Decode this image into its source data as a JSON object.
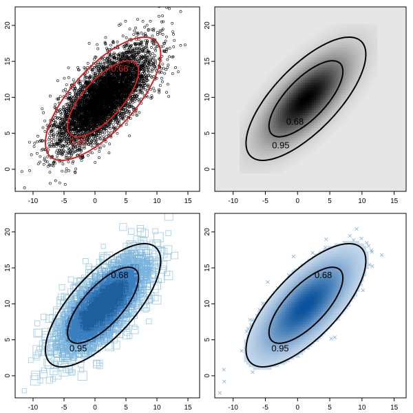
{
  "chart_data": [
    {
      "type": "scatter",
      "style": "points",
      "title": "",
      "xlim": [
        -12,
        16
      ],
      "ylim": [
        -2.5,
        22
      ],
      "x_ticks": [
        -10,
        -5,
        0,
        5,
        10,
        15
      ],
      "y_ticks": [
        0,
        5,
        10,
        15,
        20
      ],
      "x_tick_labels": [
        "-10",
        "-5",
        "0",
        "5",
        "10",
        "15"
      ],
      "y_tick_labels": [
        "0",
        "5",
        "10",
        "15",
        "20"
      ],
      "center": [
        1.3,
        9.8
      ],
      "contour_color": "#d42020",
      "contours": [
        {
          "label": "0.68",
          "label_pos": [
            4.0,
            13.6
          ]
        },
        {
          "label": "0.95",
          "label_pos": [
            -2.7,
            3.4
          ]
        }
      ]
    },
    {
      "type": "heatmap",
      "style": "density-gray",
      "title": "",
      "xlim": [
        -12,
        16
      ],
      "ylim": [
        -2.5,
        22
      ],
      "x_ticks": [
        -10,
        -5,
        0,
        5,
        10,
        15
      ],
      "y_ticks": [
        0,
        5,
        10,
        15,
        20
      ],
      "x_tick_labels": [
        "-10",
        "-5",
        "0",
        "5",
        "10",
        "15"
      ],
      "y_tick_labels": [
        "0",
        "5",
        "10",
        "15",
        "20"
      ],
      "center": [
        1.3,
        9.8
      ],
      "contour_color": "#000000",
      "contours": [
        {
          "label": "0.68",
          "label_pos": [
            -0.4,
            6.2
          ]
        },
        {
          "label": "0.95",
          "label_pos": [
            -2.6,
            2.9
          ]
        }
      ]
    },
    {
      "type": "scatter",
      "style": "squares-blue",
      "title": "",
      "xlim": [
        -12,
        16
      ],
      "ylim": [
        -2.5,
        22
      ],
      "x_ticks": [
        -10,
        -5,
        0,
        5,
        10,
        15
      ],
      "y_ticks": [
        0,
        5,
        10,
        15,
        20
      ],
      "x_tick_labels": [
        "-10",
        "-5",
        "0",
        "5",
        "10",
        "15"
      ],
      "y_tick_labels": [
        "0",
        "5",
        "10",
        "15",
        "20"
      ],
      "center": [
        1.3,
        9.8
      ],
      "contour_color": "#000000",
      "contours": [
        {
          "label": "0.68",
          "label_pos": [
            4.0,
            13.6
          ]
        },
        {
          "label": "0.95",
          "label_pos": [
            -2.7,
            3.4
          ]
        }
      ]
    },
    {
      "type": "scatter",
      "style": "density-blue-crosses",
      "title": "",
      "xlim": [
        -12,
        16
      ],
      "ylim": [
        -2.5,
        22
      ],
      "x_ticks": [
        -10,
        -5,
        0,
        5,
        10,
        15
      ],
      "y_ticks": [
        0,
        5,
        10,
        15,
        20
      ],
      "x_tick_labels": [
        "-10",
        "-5",
        "0",
        "5",
        "10",
        "15"
      ],
      "y_tick_labels": [
        "0",
        "5",
        "10",
        "15",
        "20"
      ],
      "center": [
        1.3,
        9.8
      ],
      "contour_color": "#000000",
      "contours": [
        {
          "label": "0.68",
          "label_pos": [
            4.0,
            13.6
          ]
        },
        {
          "label": "0.95",
          "label_pos": [
            -2.7,
            3.4
          ]
        }
      ]
    }
  ]
}
